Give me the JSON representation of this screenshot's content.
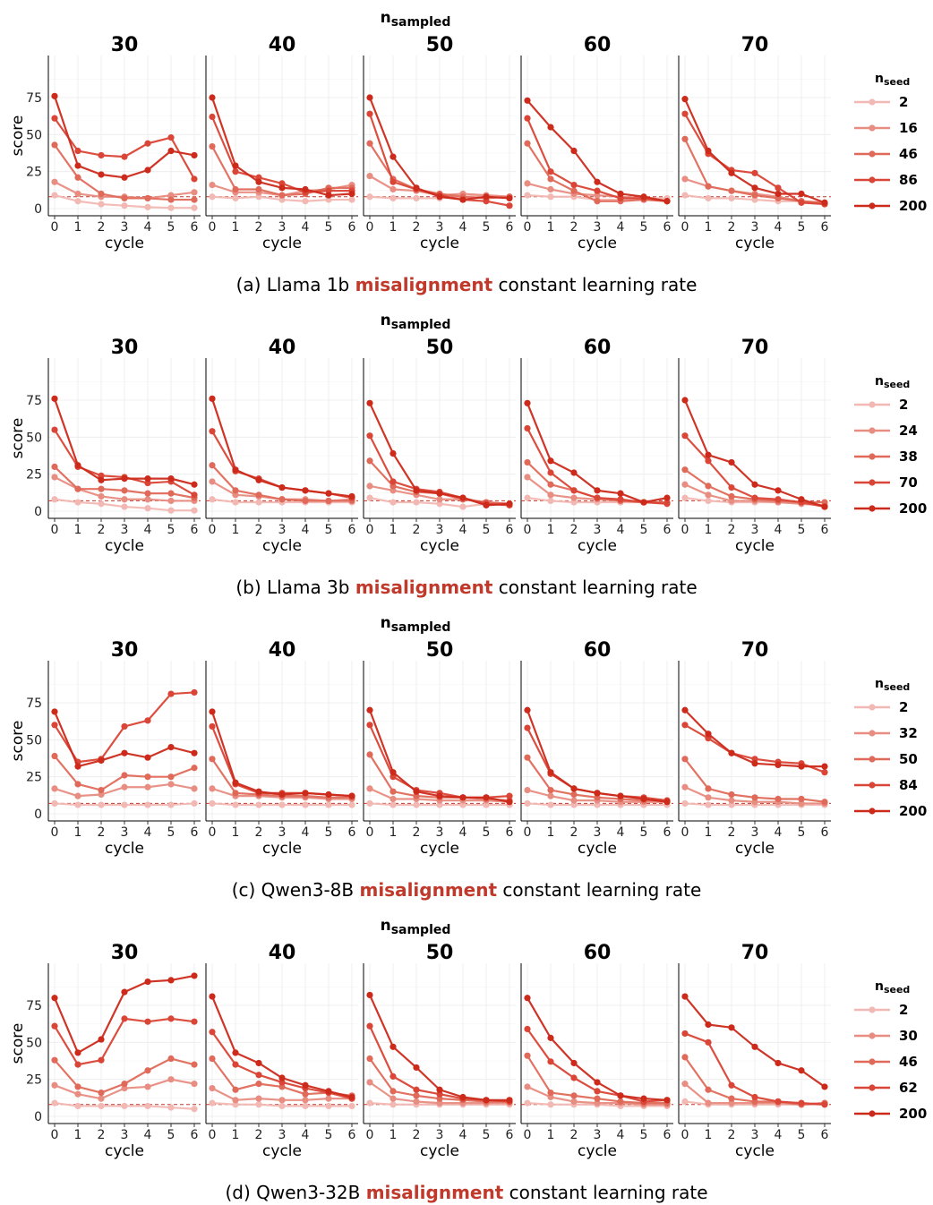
{
  "strip_title": "n",
  "strip_title_sub": "sampled",
  "legend_title": "n",
  "legend_title_sub": "seed",
  "x_label": "cycle",
  "y_label": "score",
  "y_ticks": [
    0,
    25,
    50,
    75
  ],
  "x_ticks": [
    0,
    1,
    2,
    3,
    4,
    5,
    6
  ],
  "facets": [
    "30",
    "40",
    "50",
    "60",
    "70"
  ],
  "colors": [
    "#f2b8b3",
    "#e88d82",
    "#e06a5a",
    "#d94536",
    "#cc2a1b"
  ],
  "baseline_color": "#c0392b",
  "accent_color": "#c0392b",
  "chart_data": [
    {
      "type": "line",
      "caption_prefix": "(a) Llama 1b",
      "caption_highlight": "misalignment",
      "caption_suffix": "constant learning rate",
      "x": [
        0,
        1,
        2,
        3,
        4,
        5,
        6
      ],
      "ylim": [
        0,
        100
      ],
      "baseline": 8,
      "seeds": [
        "2",
        "16",
        "46",
        "86",
        "200"
      ],
      "panels": [
        [
          [
            9,
            5,
            3,
            2,
            1,
            0.5,
            0.5
          ],
          [
            18,
            10,
            8,
            8,
            7,
            9,
            11
          ],
          [
            43,
            21,
            10,
            7,
            7,
            6,
            6
          ],
          [
            61,
            39,
            36,
            35,
            44,
            48,
            20
          ],
          [
            76,
            29,
            23,
            21,
            26,
            39,
            36
          ]
        ],
        [
          [
            8,
            7,
            8,
            6,
            5,
            6,
            6
          ],
          [
            16,
            11,
            11,
            9,
            12,
            13,
            16
          ],
          [
            42,
            13,
            13,
            9,
            10,
            14,
            14
          ],
          [
            62,
            25,
            21,
            17,
            11,
            12,
            12
          ],
          [
            75,
            29,
            18,
            14,
            13,
            9,
            10
          ]
        ],
        [
          [
            8,
            7,
            7,
            7,
            8,
            9,
            8
          ],
          [
            22,
            13,
            12,
            9,
            10,
            9,
            8
          ],
          [
            44,
            20,
            13,
            10,
            8,
            7,
            8
          ],
          [
            64,
            18,
            13,
            9,
            6,
            5,
            2
          ],
          [
            75,
            35,
            14,
            8,
            6,
            8,
            7
          ]
        ],
        [
          [
            9,
            8,
            8,
            6,
            6,
            7,
            7
          ],
          [
            17,
            13,
            10,
            9,
            8,
            7,
            5
          ],
          [
            44,
            20,
            12,
            5,
            5,
            6,
            5
          ],
          [
            61,
            25,
            16,
            12,
            7,
            7,
            5
          ],
          [
            73,
            55,
            39,
            18,
            10,
            8,
            5
          ]
        ],
        [
          [
            9,
            7,
            7,
            6,
            5,
            5,
            4
          ],
          [
            20,
            15,
            12,
            10,
            8,
            5,
            3
          ],
          [
            47,
            15,
            12,
            9,
            7,
            5,
            4
          ],
          [
            64,
            37,
            26,
            24,
            14,
            4,
            3
          ],
          [
            74,
            39,
            24,
            14,
            10,
            10,
            4
          ]
        ]
      ]
    },
    {
      "type": "line",
      "caption_prefix": "(b) Llama 3b",
      "caption_highlight": "misalignment",
      "caption_suffix": "constant learning rate",
      "x": [
        0,
        1,
        2,
        3,
        4,
        5,
        6
      ],
      "ylim": [
        0,
        100
      ],
      "baseline": 7,
      "seeds": [
        "2",
        "24",
        "38",
        "70",
        "200"
      ],
      "panels": [
        [
          [
            8,
            6,
            5,
            3,
            2,
            0.5,
            0.5
          ],
          [
            23,
            15,
            10,
            8,
            8,
            7,
            7
          ],
          [
            30,
            15,
            15,
            14,
            12,
            12,
            9
          ],
          [
            55,
            30,
            24,
            23,
            19,
            20,
            11
          ],
          [
            76,
            31,
            21,
            22,
            22,
            22,
            18
          ]
        ],
        [
          [
            8,
            6,
            6,
            6,
            6,
            6,
            6
          ],
          [
            20,
            11,
            10,
            8,
            8,
            7,
            8
          ],
          [
            31,
            14,
            11,
            8,
            7,
            7,
            7
          ],
          [
            54,
            27,
            22,
            16,
            14,
            12,
            9
          ],
          [
            76,
            28,
            21,
            16,
            14,
            12,
            10
          ]
        ],
        [
          [
            9,
            6,
            6,
            5,
            3,
            5,
            5
          ],
          [
            17,
            14,
            11,
            8,
            8,
            6,
            5
          ],
          [
            34,
            17,
            13,
            12,
            8,
            6,
            5
          ],
          [
            51,
            20,
            15,
            13,
            9,
            5,
            4
          ],
          [
            73,
            39,
            14,
            12,
            9,
            4,
            5
          ]
        ],
        [
          [
            9,
            7,
            6,
            6,
            6,
            6,
            6
          ],
          [
            23,
            11,
            9,
            8,
            7,
            6,
            6
          ],
          [
            33,
            18,
            14,
            9,
            7,
            6,
            6
          ],
          [
            56,
            26,
            14,
            9,
            8,
            6,
            5
          ],
          [
            73,
            34,
            26,
            14,
            12,
            6,
            9
          ]
        ],
        [
          [
            9,
            7,
            6,
            6,
            6,
            5,
            4
          ],
          [
            18,
            11,
            7,
            7,
            6,
            5,
            4
          ],
          [
            28,
            17,
            10,
            8,
            7,
            6,
            6
          ],
          [
            51,
            34,
            16,
            9,
            8,
            6,
            3
          ],
          [
            75,
            38,
            33,
            18,
            14,
            8,
            3
          ]
        ]
      ]
    },
    {
      "type": "line",
      "caption_prefix": "(c) Qwen3-8B",
      "caption_highlight": "misalignment",
      "caption_suffix": "constant learning rate",
      "x": [
        0,
        1,
        2,
        3,
        4,
        5,
        6
      ],
      "ylim": [
        0,
        100
      ],
      "baseline": 7,
      "seeds": [
        "2",
        "32",
        "50",
        "84",
        "200"
      ],
      "panels": [
        [
          [
            7,
            6,
            6,
            6,
            6,
            6,
            7
          ],
          [
            17,
            12,
            13,
            18,
            18,
            20,
            17
          ],
          [
            39,
            20,
            16,
            26,
            25,
            25,
            31
          ],
          [
            60,
            35,
            37,
            59,
            63,
            81,
            82
          ],
          [
            69,
            32,
            36,
            41,
            38,
            45,
            41
          ]
        ],
        [
          [
            7,
            6,
            6,
            6,
            6,
            6,
            6
          ],
          [
            17,
            12,
            12,
            11,
            11,
            10,
            10
          ],
          [
            37,
            14,
            13,
            12,
            12,
            11,
            11
          ],
          [
            59,
            20,
            14,
            14,
            14,
            13,
            12
          ],
          [
            69,
            21,
            15,
            13,
            14,
            13,
            12
          ]
        ],
        [
          [
            7,
            6,
            6,
            6,
            6,
            6,
            6
          ],
          [
            17,
            10,
            10,
            9,
            9,
            9,
            8
          ],
          [
            40,
            15,
            12,
            11,
            11,
            10,
            9
          ],
          [
            60,
            25,
            16,
            14,
            11,
            11,
            12
          ],
          [
            70,
            28,
            15,
            12,
            11,
            11,
            8
          ]
        ],
        [
          [
            7,
            6,
            6,
            6,
            6,
            6,
            6
          ],
          [
            16,
            12,
            9,
            9,
            8,
            8,
            8
          ],
          [
            38,
            16,
            13,
            11,
            10,
            9,
            9
          ],
          [
            58,
            27,
            17,
            14,
            12,
            11,
            9
          ],
          [
            70,
            28,
            17,
            14,
            12,
            10,
            8
          ]
        ],
        [
          [
            7,
            6,
            6,
            6,
            6,
            6,
            6
          ],
          [
            18,
            11,
            9,
            8,
            8,
            7,
            7
          ],
          [
            37,
            17,
            13,
            11,
            10,
            10,
            8
          ],
          [
            60,
            51,
            41,
            37,
            35,
            34,
            28
          ],
          [
            70,
            54,
            41,
            34,
            33,
            32,
            32
          ]
        ]
      ]
    },
    {
      "type": "line",
      "caption_prefix": "(d) Qwen3-32B",
      "caption_highlight": "misalignment",
      "caption_suffix": "constant learning rate",
      "x": [
        0,
        1,
        2,
        3,
        4,
        5,
        6
      ],
      "ylim": [
        0,
        100
      ],
      "baseline": 8,
      "seeds": [
        "2",
        "30",
        "46",
        "62",
        "200"
      ],
      "panels": [
        [
          [
            9,
            7,
            7,
            7,
            7,
            6,
            5
          ],
          [
            21,
            15,
            12,
            19,
            20,
            25,
            22
          ],
          [
            38,
            20,
            16,
            22,
            31,
            39,
            35
          ],
          [
            61,
            35,
            38,
            66,
            64,
            66,
            64
          ],
          [
            80,
            43,
            52,
            84,
            91,
            92,
            95
          ]
        ],
        [
          [
            9,
            8,
            8,
            7,
            7,
            7,
            7
          ],
          [
            19,
            11,
            12,
            11,
            11,
            12,
            12
          ],
          [
            39,
            18,
            22,
            20,
            15,
            16,
            14
          ],
          [
            57,
            35,
            28,
            23,
            19,
            16,
            12
          ],
          [
            81,
            43,
            36,
            26,
            21,
            17,
            13
          ]
        ],
        [
          [
            9,
            8,
            8,
            8,
            8,
            8,
            8
          ],
          [
            23,
            12,
            10,
            9,
            9,
            9,
            9
          ],
          [
            39,
            17,
            14,
            12,
            11,
            10,
            10
          ],
          [
            61,
            27,
            18,
            15,
            12,
            11,
            10
          ],
          [
            82,
            47,
            33,
            18,
            13,
            11,
            11
          ]
        ],
        [
          [
            9,
            8,
            8,
            8,
            7,
            7,
            7
          ],
          [
            20,
            13,
            10,
            9,
            9,
            8,
            8
          ],
          [
            41,
            16,
            14,
            12,
            10,
            9,
            9
          ],
          [
            59,
            37,
            26,
            17,
            14,
            10,
            11
          ],
          [
            80,
            53,
            36,
            23,
            14,
            12,
            11
          ]
        ],
        [
          [
            10,
            8,
            8,
            8,
            8,
            8,
            8
          ],
          [
            22,
            9,
            9,
            9,
            9,
            8,
            9
          ],
          [
            40,
            18,
            12,
            10,
            10,
            8,
            9
          ],
          [
            56,
            50,
            21,
            13,
            10,
            9,
            8
          ],
          [
            81,
            62,
            60,
            47,
            36,
            31,
            20
          ]
        ]
      ]
    }
  ]
}
